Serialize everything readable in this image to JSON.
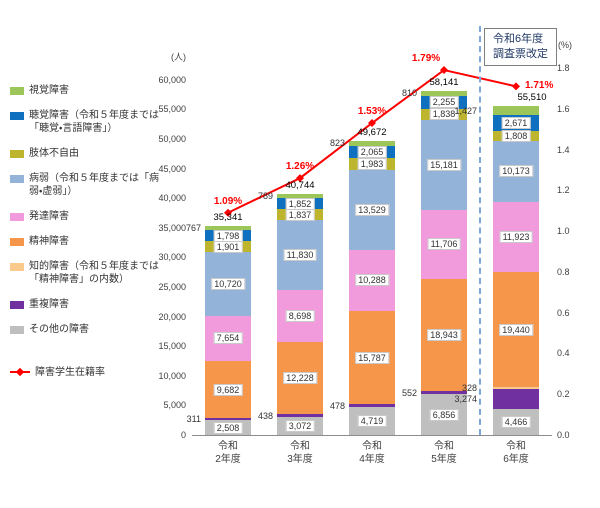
{
  "annotation": {
    "line1": "令和6年度",
    "line2": "調査票改定"
  },
  "legend": [
    {
      "label": "視覚障害",
      "color": "#9CC65A",
      "marker": "box"
    },
    {
      "label": "聴覚障害（令和５年度までは「聴覚・言語障害」）",
      "color": "#1070C0",
      "marker": "box"
    },
    {
      "label": "肢体不自由",
      "color": "#BDB52D",
      "marker": "box"
    },
    {
      "label": "病弱（令和５年度までは「病弱・虚弱」）",
      "color": "#94B3D9",
      "marker": "box"
    },
    {
      "label": "発達障害",
      "color": "#F29BDC",
      "marker": "box"
    },
    {
      "label": "精神障害",
      "color": "#F5964B",
      "marker": "box"
    },
    {
      "label": "知的障害（令和５年度までは「精神障害」の内数）",
      "color": "#FAC98C",
      "marker": "box"
    },
    {
      "label": "重複障害",
      "color": "#7030A0",
      "marker": "box"
    },
    {
      "label": "その他の障害",
      "color": "#BFBFBF",
      "marker": "box"
    },
    {
      "label": "障害学生在籍率",
      "color": "#FF0000",
      "marker": "line"
    }
  ],
  "chart_data": {
    "type": "bar",
    "stacked": true,
    "grid": false,
    "legend_position": "left",
    "categories": [
      "令和2年度",
      "令和3年度",
      "令和4年度",
      "令和5年度",
      "令和6年度"
    ],
    "series": [
      {
        "name": "その他の障害",
        "color": "#BFBFBF",
        "label_placement": "inside",
        "values": [
          2508,
          3072,
          4719,
          6856,
          4466
        ]
      },
      {
        "name": "重複障害",
        "color": "#7030A0",
        "label_placement": "outside",
        "values": [
          311,
          438,
          478,
          552,
          3274
        ]
      },
      {
        "name": "知的障害（令和５年度までは「精神障害」の内数）",
        "color": "#FAC98C",
        "label_placement": "outside",
        "values": [
          0,
          0,
          0,
          0,
          328
        ]
      },
      {
        "name": "精神障害",
        "color": "#F5964B",
        "label_placement": "inside",
        "values": [
          9682,
          12228,
          15787,
          18943,
          19440
        ]
      },
      {
        "name": "発達障害",
        "color": "#F29BDC",
        "label_placement": "inside",
        "values": [
          7654,
          8698,
          10288,
          11706,
          11923
        ]
      },
      {
        "name": "病弱（令和５年度までは「病弱・虚弱」）",
        "color": "#94B3D9",
        "label_placement": "inside",
        "values": [
          10720,
          11830,
          13529,
          15181,
          10173
        ]
      },
      {
        "name": "肢体不自由",
        "color": "#BDB52D",
        "label_placement": "inside",
        "values": [
          1901,
          1837,
          1983,
          1838,
          1808
        ]
      },
      {
        "name": "聴覚障害（令和５年度までは「聴覚・言語障害」）",
        "color": "#1070C0",
        "label_placement": "inside",
        "values": [
          1798,
          1852,
          2065,
          2255,
          2671
        ]
      },
      {
        "name": "視覚障害",
        "color": "#9CC65A",
        "label_placement": "outside",
        "values": [
          767,
          789,
          823,
          810,
          1427
        ]
      }
    ],
    "totals": [
      35341,
      40744,
      49672,
      58141,
      55510
    ],
    "rate_series": {
      "name": "障害学生在籍率",
      "color": "#FF0000",
      "values": [
        1.09,
        1.26,
        1.53,
        1.79,
        1.71
      ],
      "labels": [
        "1.09%",
        "1.26%",
        "1.53%",
        "1.79%",
        "1.71%"
      ]
    },
    "left_axis": {
      "unit": "(人)",
      "min": 0,
      "tick_max": 60000,
      "tick_step": 5000,
      "scale_max": 62000
    },
    "right_axis": {
      "unit": "(%)",
      "min": 0,
      "max": 1.8,
      "tick_step": 0.2
    }
  }
}
